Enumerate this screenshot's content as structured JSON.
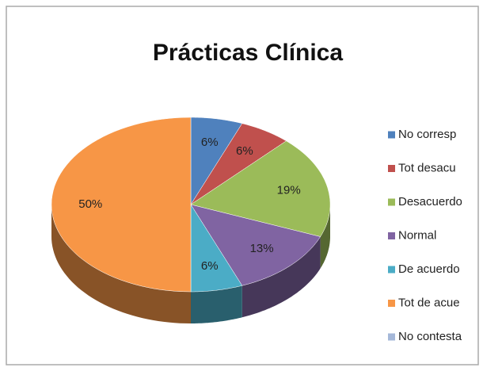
{
  "chart_data": {
    "type": "pie",
    "title": "Prácticas Clínica",
    "categories": [
      "No corresp",
      "Tot desacu",
      "Desacuerdo",
      "Normal",
      "De acuerdo",
      "Tot de acue",
      "No contesta"
    ],
    "values": [
      6,
      6,
      19,
      13,
      6,
      50,
      0
    ],
    "value_labels": [
      "6%",
      "6%",
      "19%",
      "13%",
      "6%",
      "50%",
      null
    ],
    "colors": [
      "#4f81bd",
      "#c0504d",
      "#9bbb59",
      "#8064a2",
      "#4bacc6",
      "#f79646",
      "#a5b8d9"
    ],
    "legend": "right"
  }
}
